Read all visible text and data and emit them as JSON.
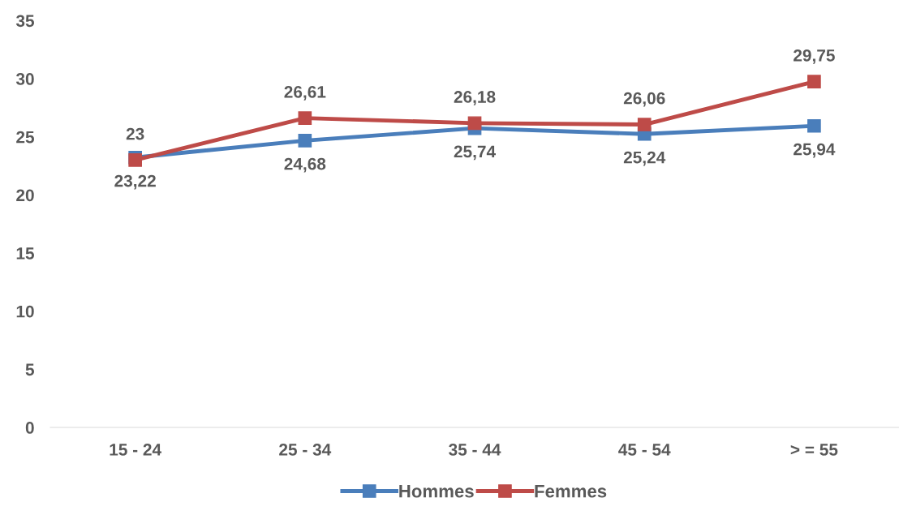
{
  "chart_data": {
    "type": "line",
    "categories": [
      "15 - 24",
      "25 - 34",
      "35 - 44",
      "45 - 54",
      "> = 55"
    ],
    "series": [
      {
        "name": "Hommes",
        "color": "#4a7ebb",
        "values": [
          23.22,
          24.68,
          25.74,
          25.24,
          25.94
        ],
        "value_labels": [
          "23,22",
          "24,68",
          "25,74",
          "25,24",
          "25,94"
        ]
      },
      {
        "name": "Femmes",
        "color": "#be4b48",
        "values": [
          23,
          26.61,
          26.18,
          26.06,
          29.75
        ],
        "value_labels": [
          "23",
          "26,61",
          "26,18",
          "26,06",
          "29,75"
        ]
      }
    ],
    "ylim": [
      0,
      35
    ],
    "yticks": [
      0,
      5,
      10,
      15,
      20,
      25,
      30,
      35
    ],
    "grid": false,
    "legend": "bottom",
    "marker": "square",
    "line_style": "solid"
  }
}
